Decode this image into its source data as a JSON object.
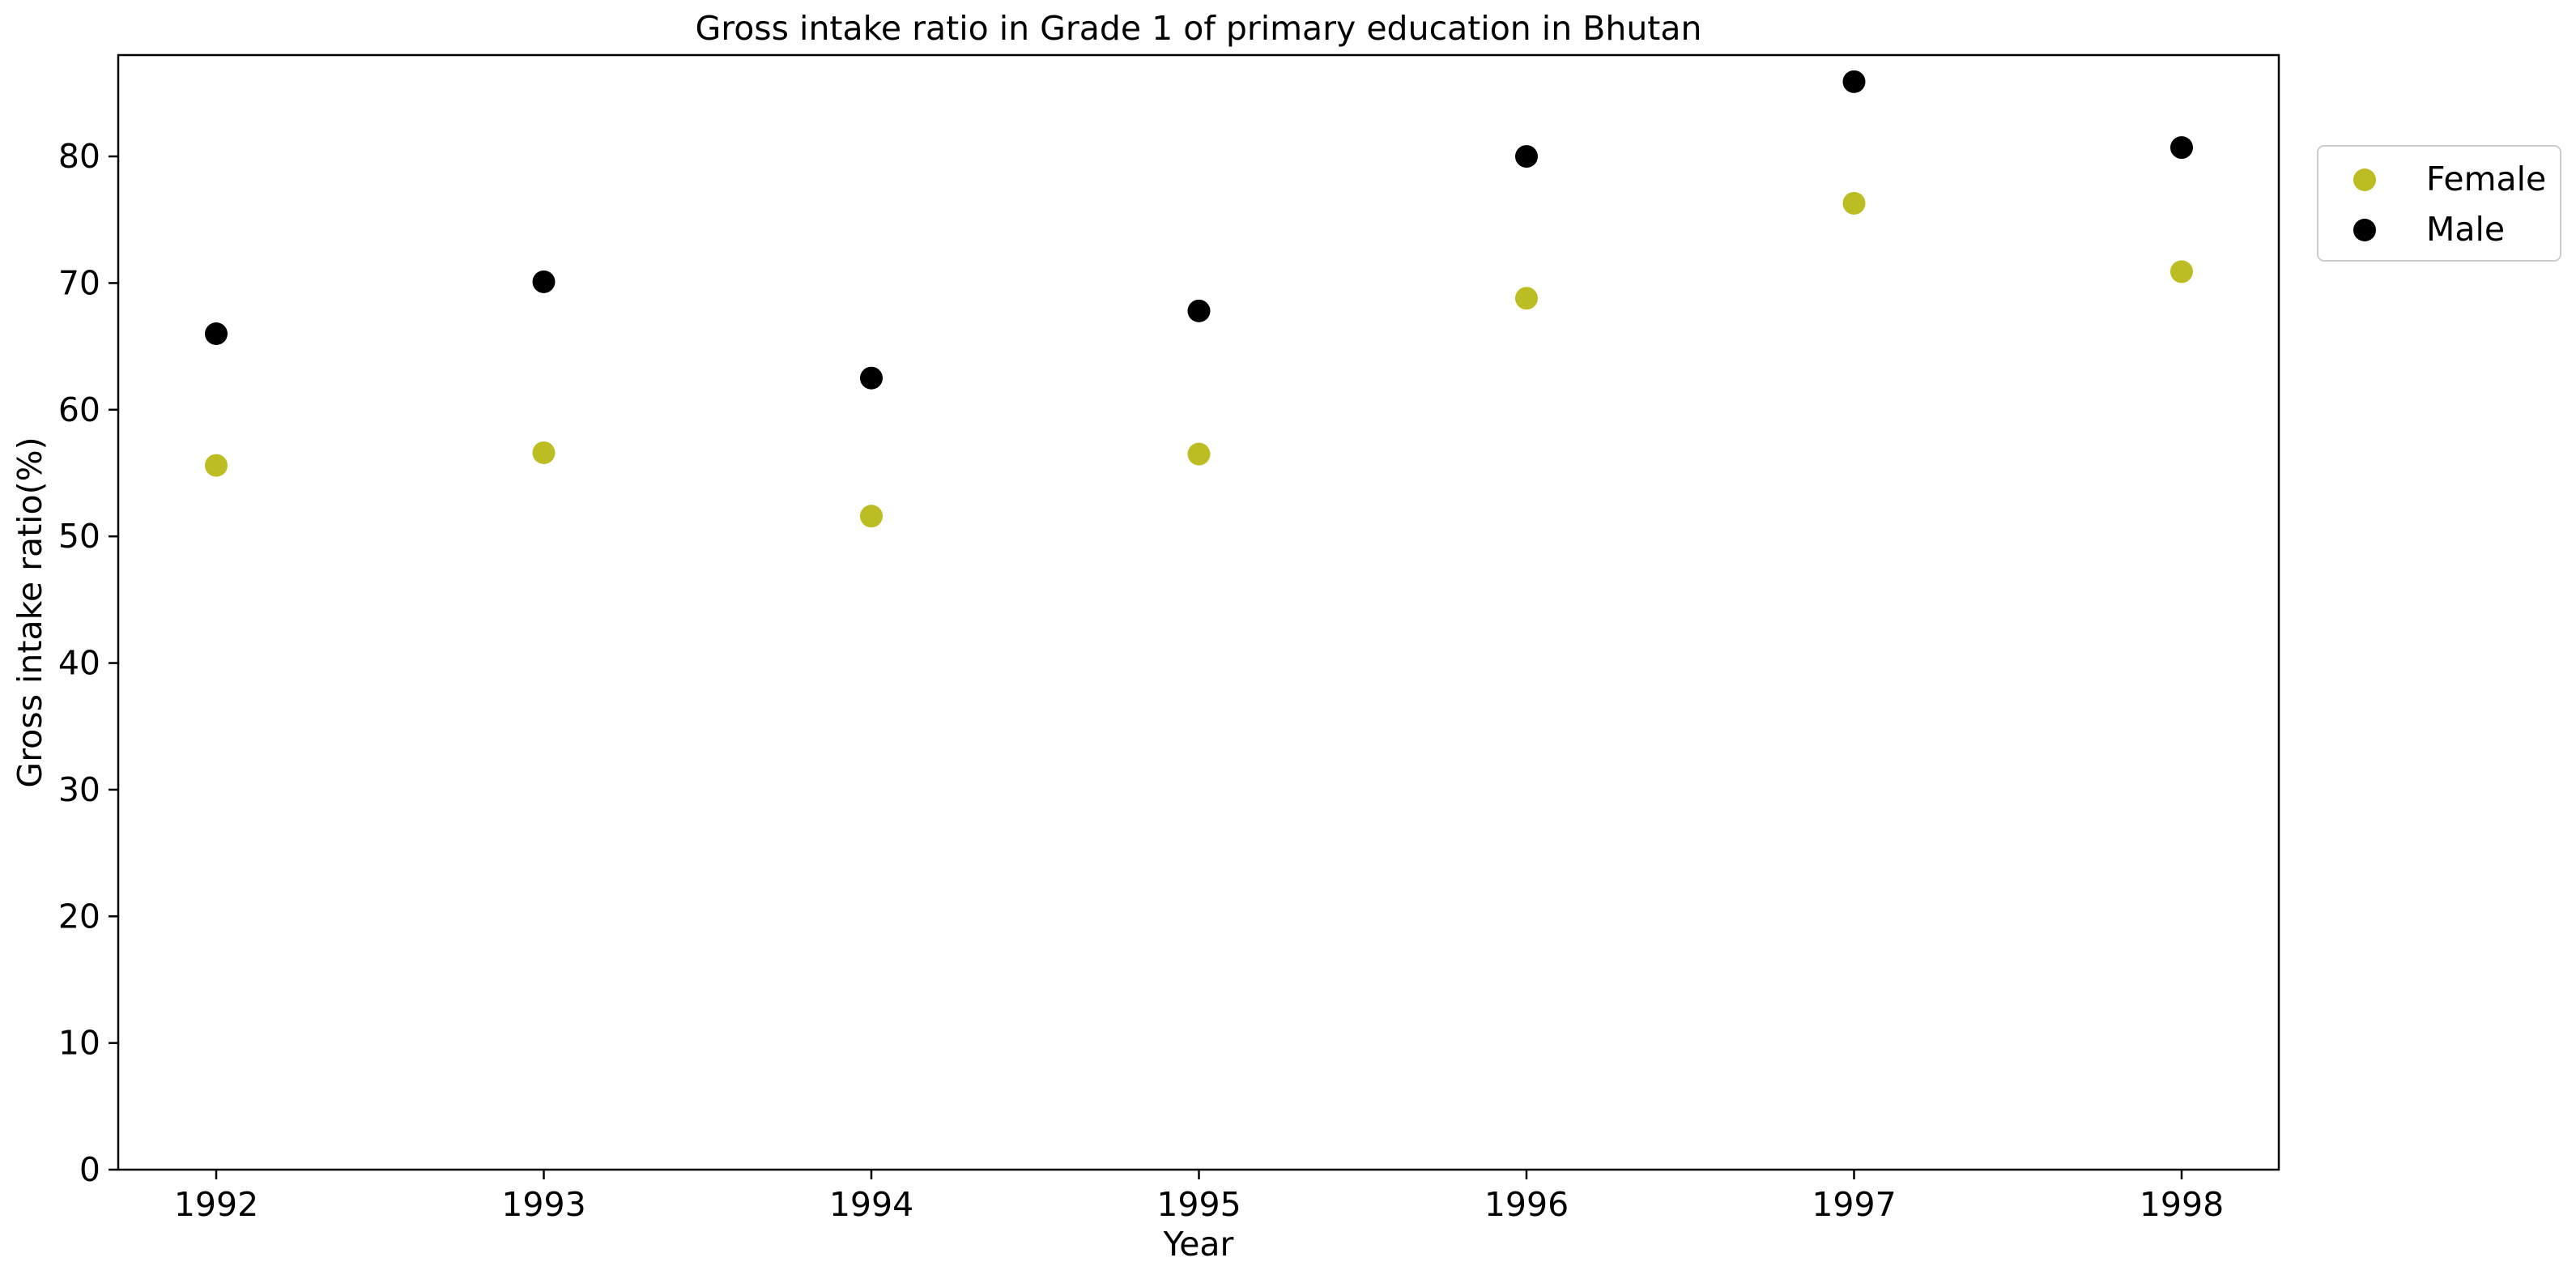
{
  "chart_data": {
    "type": "scatter",
    "title": "Gross intake ratio in Grade 1 of primary education in Bhutan",
    "xlabel": "Year",
    "ylabel": "Gross intake ratio(%)",
    "x": [
      "1992",
      "1993",
      "1994",
      "1995",
      "1996",
      "1997",
      "1998"
    ],
    "ylim": [
      0,
      88
    ],
    "yticks": [
      "0",
      "10",
      "20",
      "30",
      "40",
      "50",
      "60",
      "70",
      "80"
    ],
    "grid": false,
    "legend_position": "right, outside plot area, top",
    "series": [
      {
        "name": "Female",
        "color": "#bcbd22",
        "values": [
          55.6,
          56.6,
          51.6,
          56.5,
          68.8,
          76.3,
          70.9
        ]
      },
      {
        "name": "Male",
        "color": "#000000",
        "values": [
          66.0,
          70.1,
          62.5,
          67.8,
          80.0,
          85.9,
          80.7
        ]
      }
    ]
  }
}
